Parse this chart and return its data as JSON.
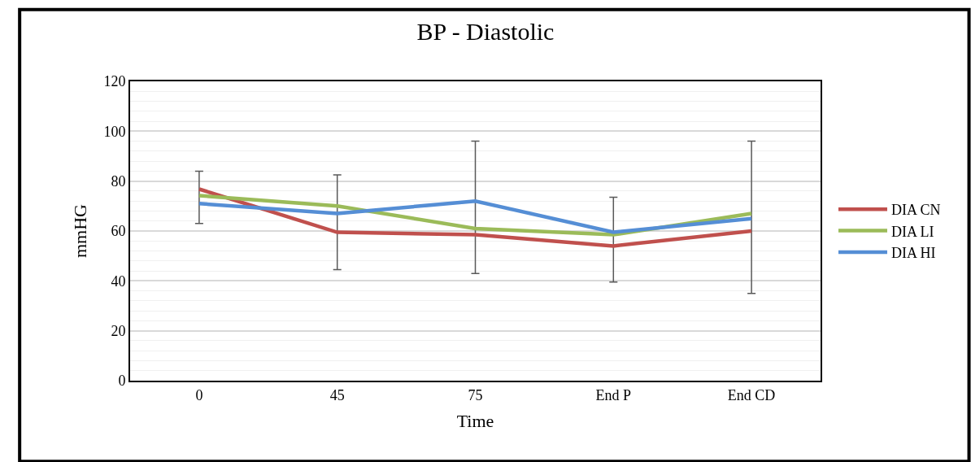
{
  "chart_data": {
    "type": "line",
    "title": "BP - Diastolic",
    "xlabel": "Time",
    "ylabel": "mmHG",
    "categories": [
      "0",
      "45",
      "75",
      "End P",
      "End CD"
    ],
    "series": [
      {
        "name": "DIA CN",
        "color": "#c0504d",
        "values": [
          76.8,
          59.5,
          58.5,
          54,
          60
        ],
        "errors": [
          [
            63,
            84
          ],
          [
            44.5,
            82.5
          ],
          [
            43,
            96
          ],
          [
            39.5,
            73.5
          ],
          [
            35,
            96
          ]
        ]
      },
      {
        "name": "DIA LI",
        "color": "#9bbb59",
        "values": [
          74.2,
          70,
          61,
          58.5,
          67
        ]
      },
      {
        "name": "DIA HI",
        "color": "#558ed5",
        "values": [
          71,
          67,
          72,
          59.5,
          65
        ]
      }
    ],
    "ylim": [
      0,
      120
    ],
    "yticks": [
      0,
      20,
      40,
      60,
      80,
      100,
      120
    ],
    "grid": "y",
    "legend": "right",
    "marker": "none",
    "line_style": "solid"
  }
}
